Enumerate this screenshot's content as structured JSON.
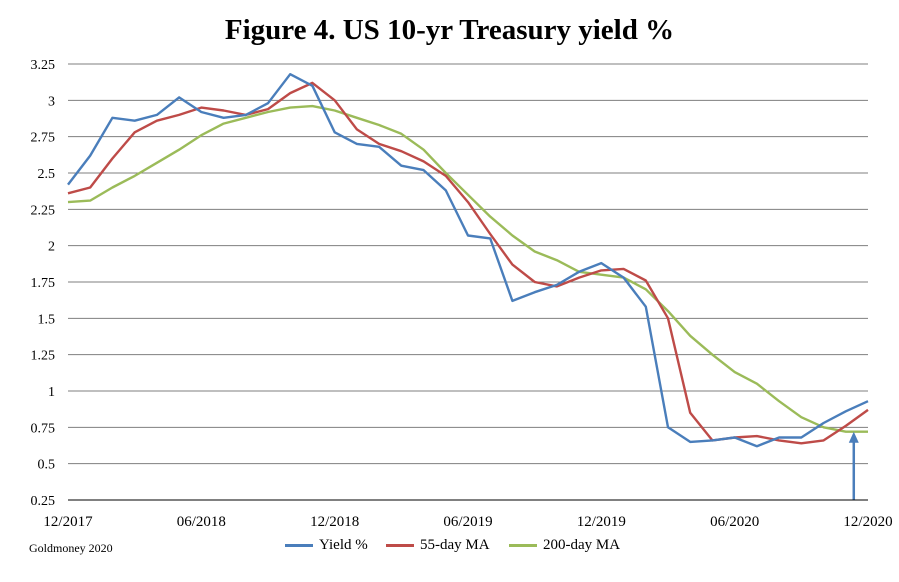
{
  "chart_data": {
    "type": "line",
    "title": "Figure 4. US 10-yr Treasury yield %",
    "xlabel": "",
    "ylabel": "",
    "ylim": [
      0.25,
      3.25
    ],
    "yticks": [
      "3.25",
      "3",
      "2.75",
      "2.5",
      "2.25",
      "2",
      "1.75",
      "1.5",
      "1.25",
      "1",
      "0.75",
      "0.5",
      "0.25"
    ],
    "xticks": [
      "12/2017",
      "06/2018",
      "12/2018",
      "06/2019",
      "12/2019",
      "06/2020",
      "12/2020"
    ],
    "x": [
      "2017-12",
      "2018-01",
      "2018-02",
      "2018-03",
      "2018-04",
      "2018-05",
      "2018-06",
      "2018-07",
      "2018-08",
      "2018-09",
      "2018-10",
      "2018-11",
      "2018-12",
      "2019-01",
      "2019-02",
      "2019-03",
      "2019-04",
      "2019-05",
      "2019-06",
      "2019-07",
      "2019-08",
      "2019-09",
      "2019-10",
      "2019-11",
      "2019-12",
      "2020-01",
      "2020-02",
      "2020-03",
      "2020-04",
      "2020-05",
      "2020-06",
      "2020-07",
      "2020-08",
      "2020-09",
      "2020-10",
      "2020-11",
      "2020-12"
    ],
    "grid": true,
    "legend_position": "bottom",
    "series": [
      {
        "name": "Yield %",
        "color": "#4a7ebb",
        "values": [
          2.42,
          2.62,
          2.88,
          2.86,
          2.9,
          3.02,
          2.92,
          2.88,
          2.9,
          2.98,
          3.18,
          3.1,
          2.78,
          2.7,
          2.68,
          2.55,
          2.52,
          2.38,
          2.07,
          2.05,
          1.62,
          1.68,
          1.73,
          1.82,
          1.88,
          1.78,
          1.58,
          0.75,
          0.65,
          0.66,
          0.68,
          0.62,
          0.68,
          0.68,
          0.78,
          0.86,
          0.93
        ]
      },
      {
        "name": "55-day MA",
        "color": "#be4b48",
        "values": [
          2.36,
          2.4,
          2.6,
          2.78,
          2.86,
          2.9,
          2.95,
          2.93,
          2.9,
          2.94,
          3.05,
          3.12,
          3.0,
          2.8,
          2.7,
          2.65,
          2.58,
          2.48,
          2.3,
          2.08,
          1.87,
          1.75,
          1.72,
          1.78,
          1.83,
          1.84,
          1.76,
          1.5,
          0.85,
          0.66,
          0.68,
          0.69,
          0.66,
          0.64,
          0.66,
          0.76,
          0.87
        ]
      },
      {
        "name": "200-day MA",
        "color": "#9bbb59",
        "values": [
          2.3,
          2.31,
          2.4,
          2.48,
          2.57,
          2.66,
          2.76,
          2.84,
          2.88,
          2.92,
          2.95,
          2.96,
          2.93,
          2.88,
          2.83,
          2.77,
          2.66,
          2.5,
          2.35,
          2.2,
          2.07,
          1.96,
          1.9,
          1.82,
          1.8,
          1.78,
          1.7,
          1.55,
          1.38,
          1.25,
          1.13,
          1.05,
          0.93,
          0.82,
          0.75,
          0.72,
          0.72
        ]
      }
    ],
    "annotations": [
      {
        "type": "arrow",
        "x": "2020-11",
        "from_y": 0.25,
        "to_y": 0.72,
        "color": "#4a7ebb"
      }
    ]
  },
  "source": "Goldmoney 2020"
}
